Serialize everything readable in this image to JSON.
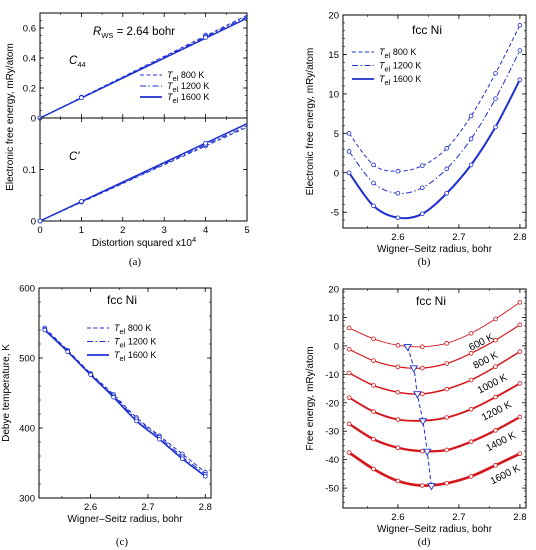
{
  "captions": [
    "(a)",
    "(b)",
    "(c)",
    "(d)"
  ],
  "colors": {
    "blue": "#1c2fd0",
    "red": "#d4171c",
    "axis": "#000000"
  },
  "chart_data": [
    {
      "id": "a",
      "type": "line",
      "panels": [
        {
          "name": "C44",
          "label_main": "C",
          "label_sub": "44",
          "annotation_main": "R",
          "annotation_sub": "WS",
          "annotation_rest": " = 2.64 bohr",
          "ylim": [
            0,
            0.7
          ],
          "yticks": [
            0,
            0.2,
            0.4,
            0.6
          ],
          "ytick_labels": [
            "0",
            "0.2",
            "0.4",
            "0.6"
          ],
          "series": [
            {
              "name": "800 K",
              "temp": "800 K",
              "style": "dashed",
              "x": [
                0,
                1,
                4
              ],
              "y": [
                0,
                0.139,
                0.552
              ],
              "end": 0.685
            },
            {
              "name": "1200 K",
              "temp": "1200 K",
              "style": "dashdot",
              "x": [
                0,
                1,
                4
              ],
              "y": [
                0,
                0.137,
                0.545
              ],
              "end": 0.675
            },
            {
              "name": "1600 K",
              "temp": "1600 K",
              "style": "solid",
              "x": [
                0,
                1,
                4
              ],
              "y": [
                0,
                0.135,
                0.537
              ],
              "end": 0.665
            }
          ]
        },
        {
          "name": "C'",
          "label_main": "C'",
          "ylim": [
            0,
            0.2
          ],
          "yticks": [
            0,
            0.1
          ],
          "ytick_labels": [
            "0",
            "0.1"
          ],
          "series": [
            {
              "name": "800 K",
              "style": "dashed",
              "x": [
                0,
                1,
                4
              ],
              "y": [
                0,
                0.037,
                0.146
              ],
              "end": 0.182
            },
            {
              "name": "1200 K",
              "style": "dashdot",
              "x": [
                0,
                1,
                4
              ],
              "y": [
                0,
                0.037,
                0.148
              ],
              "end": 0.185
            },
            {
              "name": "1600 K",
              "style": "solid",
              "x": [
                0,
                1,
                4
              ],
              "y": [
                0,
                0.038,
                0.151
              ],
              "end": 0.189
            }
          ]
        }
      ],
      "xlim": [
        0,
        5
      ],
      "xticks": [
        "0",
        "1",
        "2",
        "3",
        "4",
        "5"
      ],
      "xlabel": "Distortion squared x10",
      "xlabel_sup": "4",
      "ylabel": "Electronic free energy, mRy/atom",
      "legend_prefix_main": "T",
      "legend_prefix_sub": "el",
      "legend_position": "bottom-right"
    },
    {
      "id": "b",
      "type": "line",
      "title": "fcc Ni",
      "xlabel": "Wigner–Seitz radius, bohr",
      "ylabel": "Electronic free energy, mRy/atom",
      "xlim": [
        2.51,
        2.81
      ],
      "ylim": [
        -7,
        20
      ],
      "xticks": [
        "2.6",
        "2.7",
        "2.8"
      ],
      "yticks": [
        "-5",
        "0",
        "5",
        "10",
        "15",
        "20"
      ],
      "legend_prefix_main": "T",
      "legend_prefix_sub": "el",
      "legend_position": "top-left",
      "x": [
        2.52,
        2.56,
        2.6,
        2.64,
        2.68,
        2.72,
        2.76,
        2.8
      ],
      "series": [
        {
          "name": "800 K",
          "style": "dashed",
          "width": 1,
          "y": [
            5.0,
            1.0,
            0.2,
            0.9,
            3.1,
            7.2,
            12.6,
            18.7
          ]
        },
        {
          "name": "1200 K",
          "style": "dashdot",
          "width": 1,
          "y": [
            2.7,
            -1.3,
            -2.6,
            -1.9,
            0.5,
            4.3,
            9.4,
            15.5
          ]
        },
        {
          "name": "1600 K",
          "style": "solid",
          "width": 2,
          "y": [
            0.0,
            -4.2,
            -5.7,
            -5.2,
            -2.6,
            1.0,
            5.8,
            11.8
          ]
        }
      ]
    },
    {
      "id": "c",
      "type": "line",
      "title": "fcc Ni",
      "xlabel": "Wigner–Seitz radius, bohr",
      "ylabel": "Debye temperature, K",
      "xlim": [
        2.51,
        2.81
      ],
      "ylim": [
        300,
        600
      ],
      "xticks": [
        "2.6",
        "2.7",
        "2.8"
      ],
      "yticks": [
        "300",
        "400",
        "500",
        "600"
      ],
      "legend_prefix_main": "T",
      "legend_prefix_sub": "el",
      "legend_position": "top-right",
      "x": [
        2.52,
        2.56,
        2.6,
        2.64,
        2.68,
        2.72,
        2.76,
        2.8
      ],
      "series": [
        {
          "name": "800 K",
          "style": "dashed",
          "width": 1,
          "y": [
            543,
            511,
            478,
            448,
            415,
            389,
            363,
            337
          ]
        },
        {
          "name": "1200 K",
          "style": "dashdot",
          "width": 1,
          "y": [
            541,
            510,
            477,
            446,
            413,
            387,
            359,
            334
          ]
        },
        {
          "name": "1600 K",
          "style": "solid",
          "width": 1.6,
          "y": [
            540,
            509,
            476,
            444,
            410,
            384,
            356,
            331
          ]
        }
      ]
    },
    {
      "id": "d",
      "type": "line",
      "title": "fcc Ni",
      "xlabel": "Wigner–Seitz radius, bohr",
      "ylabel": "Free energy, mRy/atom",
      "xlim": [
        2.51,
        2.81
      ],
      "ylim": [
        -57,
        20
      ],
      "xticks": [
        "2.6",
        "2.7",
        "2.8"
      ],
      "yticks": [
        "-50",
        "-40",
        "-30",
        "-20",
        "-10",
        "0",
        "10",
        "20"
      ],
      "x": [
        2.52,
        2.56,
        2.6,
        2.64,
        2.68,
        2.72,
        2.76,
        2.8
      ],
      "series": [
        {
          "name": "600 K",
          "width": 0.9,
          "y": [
            6.3,
            2.5,
            0.2,
            -0.3,
            0.9,
            4.4,
            9.5,
            15.3
          ]
        },
        {
          "name": "800 K",
          "width": 1.2,
          "y": [
            -1.2,
            -5.2,
            -7.4,
            -7.8,
            -6.2,
            -2.6,
            2.0,
            7.4
          ]
        },
        {
          "name": "1000 K",
          "width": 1.5,
          "y": [
            -9.5,
            -13.9,
            -16.3,
            -16.9,
            -15.2,
            -12.0,
            -7.3,
            -2.0
          ]
        },
        {
          "name": "1200 K",
          "width": 1.9,
          "y": [
            -18.2,
            -23.1,
            -25.9,
            -26.3,
            -25.2,
            -22.3,
            -18.0,
            -13.2
          ]
        },
        {
          "name": "1400 K",
          "width": 2.3,
          "y": [
            -27.4,
            -32.8,
            -35.8,
            -37.0,
            -36.6,
            -33.7,
            -29.7,
            -25.0
          ]
        },
        {
          "name": "1600 K",
          "width": 2.7,
          "y": [
            -37.5,
            -43.3,
            -47.5,
            -49.1,
            -48.3,
            -45.9,
            -42.0,
            -37.9
          ]
        }
      ],
      "minima": {
        "x": [
          2.616,
          2.626,
          2.632,
          2.641,
          2.648,
          2.655
        ],
        "y": [
          -0.4,
          -7.9,
          -17.0,
          -26.5,
          -37.2,
          -49.3
        ]
      }
    }
  ]
}
